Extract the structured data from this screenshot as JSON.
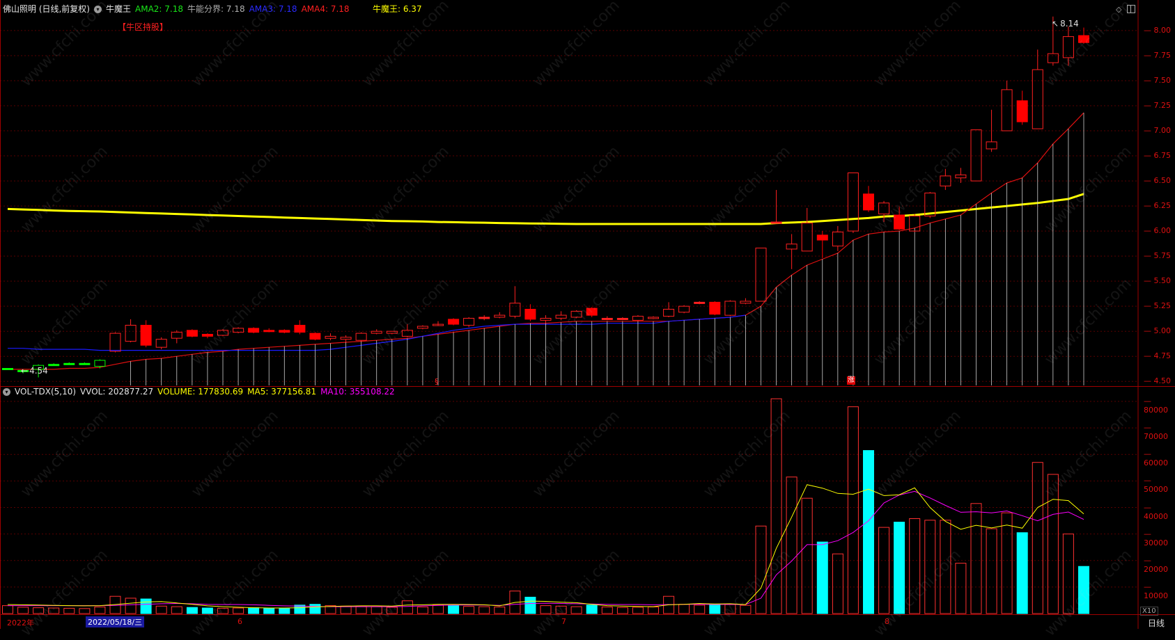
{
  "header": {
    "stock": "佛山照明 (日线,前复权)",
    "indicator": "牛魔王",
    "ama2": "AMA2: 7.18",
    "split": "牛能分界: 7.18",
    "ama3": "AMA3: 7.18",
    "ama4": "AMA4: 7.18",
    "nmw": "牛魔王: 6.37",
    "zone": "【牛区持股】"
  },
  "vol_header": {
    "name": "VOL-TDX(5,10)",
    "vvol": "VVOL: 202877.27",
    "volume": "VOLUME: 177830.69",
    "ma5": "MA5: 377156.81",
    "ma10": "MA10: 355108.22"
  },
  "annotations": {
    "high": "8.14",
    "low": "4.54",
    "mark_s": "§",
    "mark_zhang": "涨"
  },
  "footer": {
    "year": "2022年",
    "cursor_date": "2022/05/18/三",
    "m6": "6",
    "m7": "7",
    "m8": "8",
    "period": "日线",
    "x10": "X10"
  },
  "colors": {
    "up": "#ff2020",
    "down": "#ff0000",
    "flat_green": "#00ff00",
    "ama_yellow": "#ffff00",
    "ama_red": "#e01010",
    "ama_blue": "#1a1aff",
    "vol_cyan": "#00ffff",
    "ma5": "#ffff00",
    "ma10": "#ff00ff",
    "grid": "#5a0000"
  },
  "chart_data": {
    "type": "candlestick",
    "price_axis": {
      "ticks": [
        "8.00",
        "7.75",
        "7.50",
        "7.25",
        "7.00",
        "6.75",
        "6.50",
        "6.25",
        "6.00",
        "5.75",
        "5.50",
        "5.25",
        "5.00",
        "4.75",
        "4.50"
      ],
      "ylim": [
        4.46,
        8.18
      ]
    },
    "volume_axis": {
      "ticks": [
        "80000",
        "70000",
        "60000",
        "50000",
        "40000",
        "30000",
        "20000",
        "10000"
      ],
      "ylim": [
        0,
        85000
      ]
    },
    "candles": [
      {
        "o": 4.63,
        "c": 4.63,
        "h": 4.63,
        "l": 4.63,
        "v": 3000,
        "s": "flat"
      },
      {
        "o": 4.61,
        "c": 4.61,
        "h": 4.62,
        "l": 4.58,
        "v": 2400,
        "s": "flat"
      },
      {
        "o": 4.62,
        "c": 4.66,
        "h": 4.67,
        "l": 4.54,
        "v": 2200,
        "s": "up"
      },
      {
        "o": 4.67,
        "c": 4.67,
        "h": 4.68,
        "l": 4.66,
        "v": 2100,
        "s": "flat"
      },
      {
        "o": 4.68,
        "c": 4.68,
        "h": 4.69,
        "l": 4.67,
        "v": 2000,
        "s": "flat"
      },
      {
        "o": 4.68,
        "c": 4.68,
        "h": 4.69,
        "l": 4.67,
        "v": 1900,
        "s": "flat"
      },
      {
        "o": 4.65,
        "c": 4.71,
        "h": 4.72,
        "l": 4.63,
        "v": 2500,
        "s": "up"
      },
      {
        "o": 4.8,
        "c": 4.98,
        "h": 4.99,
        "l": 4.79,
        "v": 6500,
        "s": "up"
      },
      {
        "o": 4.9,
        "c": 5.06,
        "h": 5.12,
        "l": 4.89,
        "v": 5800,
        "s": "up"
      },
      {
        "o": 5.06,
        "c": 4.86,
        "h": 5.11,
        "l": 4.84,
        "v": 5500,
        "s": "down"
      },
      {
        "o": 4.84,
        "c": 4.92,
        "h": 4.94,
        "l": 4.82,
        "v": 2800,
        "s": "up"
      },
      {
        "o": 4.93,
        "c": 4.99,
        "h": 5.01,
        "l": 4.88,
        "v": 2600,
        "s": "up"
      },
      {
        "o": 5.01,
        "c": 4.95,
        "h": 5.02,
        "l": 4.94,
        "v": 2300,
        "s": "down"
      },
      {
        "o": 4.95,
        "c": 4.97,
        "h": 4.98,
        "l": 4.93,
        "v": 2100,
        "s": "down"
      },
      {
        "o": 4.96,
        "c": 5.01,
        "h": 5.02,
        "l": 4.95,
        "v": 2000,
        "s": "up"
      },
      {
        "o": 4.99,
        "c": 5.03,
        "h": 5.04,
        "l": 4.98,
        "v": 2100,
        "s": "up"
      },
      {
        "o": 5.03,
        "c": 4.99,
        "h": 5.04,
        "l": 4.98,
        "v": 2200,
        "s": "down"
      },
      {
        "o": 5.01,
        "c": 5.0,
        "h": 5.03,
        "l": 4.99,
        "v": 2000,
        "s": "down"
      },
      {
        "o": 5.01,
        "c": 4.99,
        "h": 5.02,
        "l": 4.98,
        "v": 2100,
        "s": "down"
      },
      {
        "o": 5.06,
        "c": 4.99,
        "h": 5.11,
        "l": 4.97,
        "v": 3200,
        "s": "down"
      },
      {
        "o": 4.98,
        "c": 4.92,
        "h": 4.99,
        "l": 4.91,
        "v": 3500,
        "s": "down"
      },
      {
        "o": 4.93,
        "c": 4.95,
        "h": 4.98,
        "l": 4.91,
        "v": 3000,
        "s": "up"
      },
      {
        "o": 4.92,
        "c": 4.94,
        "h": 4.96,
        "l": 4.89,
        "v": 2800,
        "s": "up"
      },
      {
        "o": 4.91,
        "c": 4.98,
        "h": 4.99,
        "l": 4.9,
        "v": 2700,
        "s": "up"
      },
      {
        "o": 4.98,
        "c": 5.0,
        "h": 5.02,
        "l": 4.97,
        "v": 2600,
        "s": "up"
      },
      {
        "o": 4.98,
        "c": 5.0,
        "h": 5.0,
        "l": 4.97,
        "v": 2400,
        "s": "up"
      },
      {
        "o": 4.95,
        "c": 5.01,
        "h": 5.07,
        "l": 4.94,
        "v": 4800,
        "s": "up"
      },
      {
        "o": 5.03,
        "c": 5.05,
        "h": 5.06,
        "l": 5.02,
        "v": 2500,
        "s": "up"
      },
      {
        "o": 5.07,
        "c": 5.07,
        "h": 5.1,
        "l": 5.06,
        "v": 3200,
        "s": "up"
      },
      {
        "o": 5.07,
        "c": 5.12,
        "h": 5.13,
        "l": 5.06,
        "v": 3100,
        "s": "down"
      },
      {
        "o": 5.06,
        "c": 5.13,
        "h": 5.14,
        "l": 5.04,
        "v": 2700,
        "s": "up"
      },
      {
        "o": 5.14,
        "c": 5.14,
        "h": 5.16,
        "l": 5.11,
        "v": 2600,
        "s": "flat"
      },
      {
        "o": 5.14,
        "c": 5.16,
        "h": 5.19,
        "l": 5.13,
        "v": 2500,
        "s": "up"
      },
      {
        "o": 5.15,
        "c": 5.28,
        "h": 5.45,
        "l": 5.13,
        "v": 8500,
        "s": "up"
      },
      {
        "o": 5.22,
        "c": 5.12,
        "h": 5.27,
        "l": 5.1,
        "v": 6200,
        "s": "down"
      },
      {
        "o": 5.11,
        "c": 5.13,
        "h": 5.16,
        "l": 5.08,
        "v": 3000,
        "s": "up"
      },
      {
        "o": 5.13,
        "c": 5.16,
        "h": 5.2,
        "l": 5.11,
        "v": 2800,
        "s": "up"
      },
      {
        "o": 5.14,
        "c": 5.2,
        "h": 5.21,
        "l": 5.13,
        "v": 2600,
        "s": "up"
      },
      {
        "o": 5.23,
        "c": 5.16,
        "h": 5.24,
        "l": 5.14,
        "v": 3200,
        "s": "down"
      },
      {
        "o": 5.13,
        "c": 5.13,
        "h": 5.15,
        "l": 5.11,
        "v": 2500,
        "s": "flat"
      },
      {
        "o": 5.13,
        "c": 5.13,
        "h": 5.14,
        "l": 5.11,
        "v": 2300,
        "s": "flat"
      },
      {
        "o": 5.11,
        "c": 5.15,
        "h": 5.16,
        "l": 5.1,
        "v": 2400,
        "s": "up"
      },
      {
        "o": 5.13,
        "c": 5.14,
        "h": 5.15,
        "l": 5.12,
        "v": 2500,
        "s": "up"
      },
      {
        "o": 5.15,
        "c": 5.22,
        "h": 5.29,
        "l": 5.14,
        "v": 6500,
        "s": "up"
      },
      {
        "o": 5.19,
        "c": 5.25,
        "h": 5.26,
        "l": 5.18,
        "v": 3500,
        "s": "up"
      },
      {
        "o": 5.29,
        "c": 5.28,
        "h": 5.3,
        "l": 5.27,
        "v": 3200,
        "s": "flat"
      },
      {
        "o": 5.29,
        "c": 5.17,
        "h": 5.3,
        "l": 5.16,
        "v": 3600,
        "s": "down"
      },
      {
        "o": 5.16,
        "c": 5.3,
        "h": 5.31,
        "l": 5.15,
        "v": 3400,
        "s": "up"
      },
      {
        "o": 5.28,
        "c": 5.3,
        "h": 5.33,
        "l": 5.27,
        "v": 3100,
        "s": "up"
      },
      {
        "o": 5.3,
        "c": 5.83,
        "h": 5.83,
        "l": 5.3,
        "v": 33000,
        "s": "up"
      },
      {
        "o": 6.09,
        "c": 6.09,
        "h": 6.41,
        "l": 6.09,
        "v": 81000,
        "s": "flat"
      },
      {
        "o": 5.82,
        "c": 5.87,
        "h": 5.97,
        "l": 5.62,
        "v": 51500,
        "s": "up"
      },
      {
        "o": 5.8,
        "c": 6.08,
        "h": 6.23,
        "l": 5.8,
        "v": 43500,
        "s": "up"
      },
      {
        "o": 5.96,
        "c": 5.91,
        "h": 6.0,
        "l": 5.73,
        "v": 27000,
        "s": "down"
      },
      {
        "o": 5.85,
        "c": 5.99,
        "h": 6.05,
        "l": 5.8,
        "v": 22500,
        "s": "up"
      },
      {
        "o": 6.0,
        "c": 6.58,
        "h": 6.58,
        "l": 5.98,
        "v": 78000,
        "s": "up"
      },
      {
        "o": 6.37,
        "c": 6.21,
        "h": 6.45,
        "l": 6.19,
        "v": 61500,
        "s": "down"
      },
      {
        "o": 6.17,
        "c": 6.28,
        "h": 6.3,
        "l": 6.09,
        "v": 32500,
        "s": "up"
      },
      {
        "o": 6.16,
        "c": 6.02,
        "h": 6.24,
        "l": 6.01,
        "v": 34500,
        "s": "down"
      },
      {
        "o": 6.0,
        "c": 6.15,
        "h": 6.17,
        "l": 5.99,
        "v": 35800,
        "s": "up"
      },
      {
        "o": 6.15,
        "c": 6.38,
        "h": 6.39,
        "l": 6.13,
        "v": 35200,
        "s": "up"
      },
      {
        "o": 6.45,
        "c": 6.55,
        "h": 6.62,
        "l": 6.41,
        "v": 35200,
        "s": "up"
      },
      {
        "o": 6.53,
        "c": 6.56,
        "h": 6.63,
        "l": 6.48,
        "v": 19000,
        "s": "up"
      },
      {
        "o": 6.5,
        "c": 7.01,
        "h": 7.01,
        "l": 6.5,
        "v": 41500,
        "s": "up"
      },
      {
        "o": 6.82,
        "c": 6.89,
        "h": 7.21,
        "l": 6.79,
        "v": 32000,
        "s": "up"
      },
      {
        "o": 7.0,
        "c": 7.41,
        "h": 7.5,
        "l": 7.0,
        "v": 38000,
        "s": "up"
      },
      {
        "o": 7.3,
        "c": 7.09,
        "h": 7.4,
        "l": 7.06,
        "v": 30500,
        "s": "down"
      },
      {
        "o": 7.02,
        "c": 7.61,
        "h": 7.81,
        "l": 7.02,
        "v": 57000,
        "s": "up"
      },
      {
        "o": 7.68,
        "c": 7.77,
        "h": 8.14,
        "l": 7.65,
        "v": 52500,
        "s": "up"
      },
      {
        "o": 7.73,
        "c": 7.94,
        "h": 8.04,
        "l": 7.65,
        "v": 30000,
        "s": "up"
      },
      {
        "o": 7.95,
        "c": 7.88,
        "h": 8.03,
        "l": 7.87,
        "v": 17800,
        "s": "down"
      }
    ],
    "ama_yellow": [
      6.22,
      6.215,
      6.21,
      6.205,
      6.2,
      6.198,
      6.195,
      6.19,
      6.185,
      6.18,
      6.175,
      6.17,
      6.165,
      6.16,
      6.155,
      6.15,
      6.145,
      6.14,
      6.135,
      6.13,
      6.125,
      6.12,
      6.115,
      6.11,
      6.105,
      6.1,
      6.098,
      6.095,
      6.09,
      6.088,
      6.085,
      6.083,
      6.08,
      6.078,
      6.076,
      6.074,
      6.072,
      6.07,
      6.07,
      6.07,
      6.07,
      6.07,
      6.07,
      6.07,
      6.07,
      6.07,
      6.07,
      6.07,
      6.07,
      6.07,
      6.08,
      6.085,
      6.09,
      6.1,
      6.11,
      6.12,
      6.13,
      6.145,
      6.15,
      6.16,
      6.175,
      6.19,
      6.205,
      6.22,
      6.235,
      6.25,
      6.265,
      6.28,
      6.3,
      6.32,
      6.37
    ],
    "ama_red": [
      4.62,
      4.62,
      4.62,
      4.62,
      4.63,
      4.63,
      4.64,
      4.67,
      4.7,
      4.72,
      4.73,
      4.75,
      4.77,
      4.79,
      4.8,
      4.82,
      4.83,
      4.84,
      4.85,
      4.86,
      4.87,
      4.88,
      4.89,
      4.9,
      4.91,
      4.92,
      4.93,
      4.95,
      4.97,
      4.99,
      5.01,
      5.03,
      5.05,
      5.07,
      5.08,
      5.08,
      5.09,
      5.1,
      5.1,
      5.1,
      5.1,
      5.1,
      5.1,
      5.1,
      5.11,
      5.12,
      5.13,
      5.14,
      5.16,
      5.25,
      5.44,
      5.56,
      5.66,
      5.72,
      5.78,
      5.91,
      5.97,
      5.99,
      6.0,
      6.03,
      6.08,
      6.12,
      6.16,
      6.27,
      6.38,
      6.48,
      6.53,
      6.68,
      6.87,
      7.02,
      7.18
    ],
    "ama_blue": [
      4.83,
      4.83,
      4.82,
      4.82,
      4.82,
      4.82,
      4.81,
      4.81,
      4.81,
      4.81,
      4.81,
      4.81,
      4.81,
      4.81,
      4.81,
      4.81,
      4.81,
      4.81,
      4.81,
      4.81,
      4.81,
      4.82,
      4.84,
      4.86,
      4.88,
      4.9,
      4.92,
      4.95,
      4.98,
      5.01,
      5.03,
      5.05,
      5.06,
      5.07,
      5.07,
      5.07,
      5.07,
      5.07,
      5.07,
      5.08,
      5.08,
      5.08,
      5.08,
      5.1,
      5.11,
      5.12,
      5.13,
      5.14,
      5.16
    ],
    "ma5": [
      3400,
      3300,
      3200,
      3100,
      3000,
      2900,
      3000,
      3400,
      3900,
      4400,
      4500,
      4000,
      3500,
      2900,
      2600,
      2400,
      2200,
      2100,
      2100,
      2200,
      2500,
      2700,
      2800,
      2900,
      2900,
      2800,
      3200,
      3300,
      3500,
      3500,
      3400,
      3300,
      2900,
      4200,
      4700,
      4600,
      4300,
      4100,
      3500,
      3000,
      2800,
      2700,
      2600,
      3300,
      3500,
      3800,
      3600,
      3700,
      3400,
      9600,
      24600,
      36400,
      48600,
      47300,
      45300,
      45000,
      46900,
      44500,
      44800,
      47400,
      40000,
      34800,
      31800,
      33300,
      32300,
      33400,
      32200,
      40000,
      43100,
      42600,
      37600
    ],
    "ma10": [
      3000,
      3000,
      3000,
      3000,
      3000,
      3000,
      3000,
      3100,
      3300,
      3500,
      3700,
      3800,
      3700,
      3500,
      3400,
      3400,
      3300,
      3100,
      2900,
      2800,
      2700,
      2600,
      2600,
      2600,
      2600,
      2600,
      2700,
      2900,
      3100,
      3200,
      3200,
      3200,
      3100,
      3500,
      3800,
      3900,
      3800,
      3700,
      3600,
      3500,
      3400,
      3400,
      3300,
      3400,
      3500,
      3500,
      3400,
      3500,
      3400,
      5800,
      14600,
      19800,
      26000,
      26000,
      27500,
      30600,
      35000,
      41700,
      44700,
      46100,
      43600,
      40800,
      38200,
      38400,
      38000,
      38700,
      36900,
      35000,
      37400,
      38300,
      35500
    ]
  }
}
